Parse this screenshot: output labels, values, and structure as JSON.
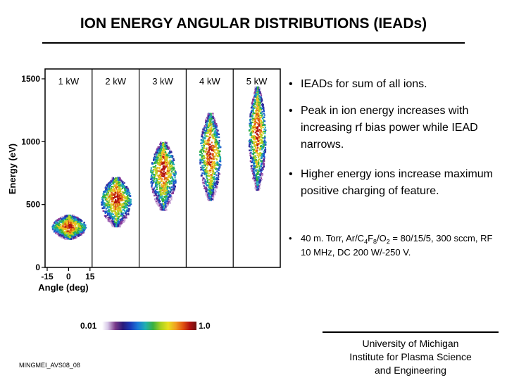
{
  "title": "ION ENERGY ANGULAR DISTRIBUTIONS (IEADs)",
  "chart_data": {
    "type": "heatmap",
    "title": "",
    "panels": [
      "1 kW",
      "2 kW",
      "3 kW",
      "4 kW",
      "5 kW"
    ],
    "ylabel": "Energy (eV)",
    "xlabel": "Angle (deg)",
    "ylim": [
      0,
      1500
    ],
    "xlim": [
      -15,
      15
    ],
    "yticks": [
      "0",
      "500",
      "1000",
      "1500"
    ],
    "xticks": [
      "-15",
      "0",
      "15"
    ],
    "peak_energy_eV": [
      330,
      560,
      780,
      920,
      1100
    ],
    "max_energy_eV": [
      420,
      720,
      1000,
      1230,
      1440
    ],
    "min_energy_eV": [
      230,
      330,
      460,
      540,
      620
    ],
    "colorbar": {
      "min_label": "0.01",
      "max_label": "1.0"
    }
  },
  "bullets": [
    "IEADs for sum of all ions.",
    "Peak in ion energy increases with increasing rf bias power while IEAD narrows.",
    "Higher energy ions increase maximum positive charging of feature."
  ],
  "conditions": {
    "prefix": "40 m. Torr, Ar/C",
    "c_sub": "4",
    "mid1": "F",
    "f_sub": "8",
    "mid2": "/O",
    "o_sub": "2",
    "suffix": " = 80/15/5, 300 sccm, RF 10 MHz, DC 200 W/-250 V."
  },
  "footer": {
    "id": "MINGMEI_AVS08_08",
    "university": [
      "University of Michigan",
      "Institute for Plasma Science",
      "and Engineering"
    ]
  }
}
